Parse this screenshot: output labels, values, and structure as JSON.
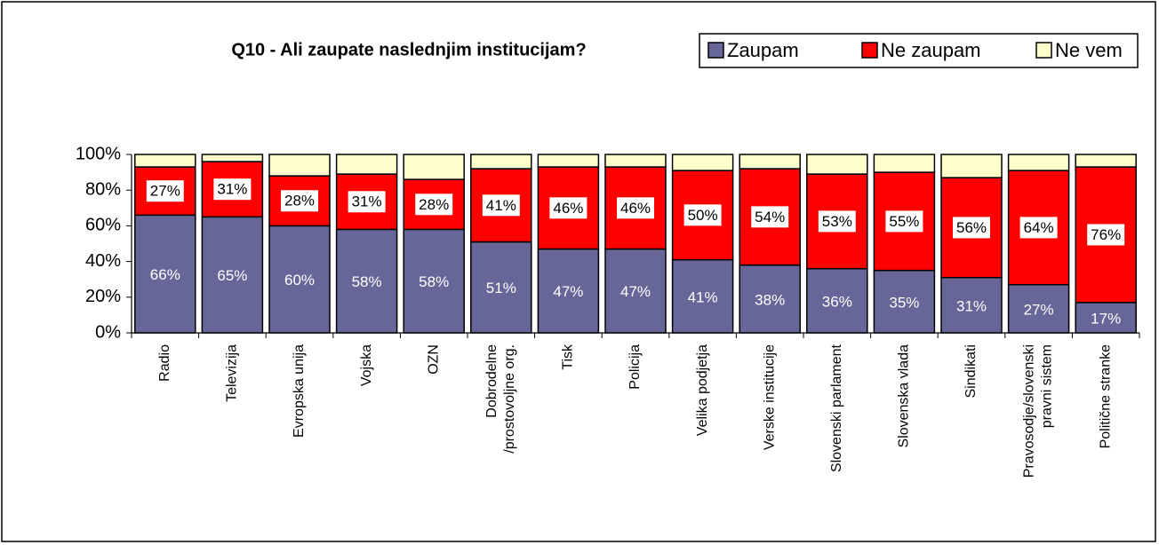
{
  "chart_data": {
    "type": "stacked_bar",
    "title": "Q10 - Ali zaupate naslednjim institucijam?",
    "categories": [
      "Radio",
      "Televizija",
      "Evropska unija",
      "Vojska",
      "OZN",
      "Dobrodelne\n/prostovoljne org.",
      "Tisk",
      "Policija",
      "Velika podjetja",
      "Verske institucije",
      "Slovenski parlament",
      "Slovenska vlada",
      "Sindikati",
      "Pravosodje/slovenski\npravni sistem",
      "Politične stranke"
    ],
    "series": [
      {
        "name": "Zaupam",
        "color": "#666699",
        "values": [
          66,
          65,
          60,
          58,
          58,
          51,
          47,
          47,
          41,
          38,
          36,
          35,
          31,
          27,
          17
        ],
        "value_labels": [
          "66%",
          "65%",
          "60%",
          "58%",
          "58%",
          "51%",
          "47%",
          "47%",
          "41%",
          "38%",
          "36%",
          "35%",
          "31%",
          "27%",
          "17%"
        ]
      },
      {
        "name": "Ne zaupam",
        "color": "#ff0000",
        "values": [
          27,
          31,
          28,
          31,
          28,
          41,
          46,
          46,
          50,
          54,
          53,
          55,
          56,
          64,
          76
        ],
        "value_labels": [
          "27%",
          "31%",
          "28%",
          "31%",
          "28%",
          "41%",
          "46%",
          "46%",
          "50%",
          "54%",
          "53%",
          "55%",
          "56%",
          "64%",
          "76%"
        ]
      },
      {
        "name": "Ne vem",
        "color": "#ffffcc",
        "values": [
          7,
          4,
          12,
          11,
          14,
          8,
          7,
          7,
          9,
          8,
          11,
          10,
          13,
          9,
          7
        ]
      }
    ],
    "ylim": [
      0,
      100
    ],
    "yticks": [
      {
        "value": 0,
        "label": "0%"
      },
      {
        "value": 20,
        "label": "20%"
      },
      {
        "value": 40,
        "label": "40%"
      },
      {
        "value": 60,
        "label": "60%"
      },
      {
        "value": 80,
        "label": "80%"
      },
      {
        "value": 100,
        "label": "100%"
      }
    ]
  }
}
